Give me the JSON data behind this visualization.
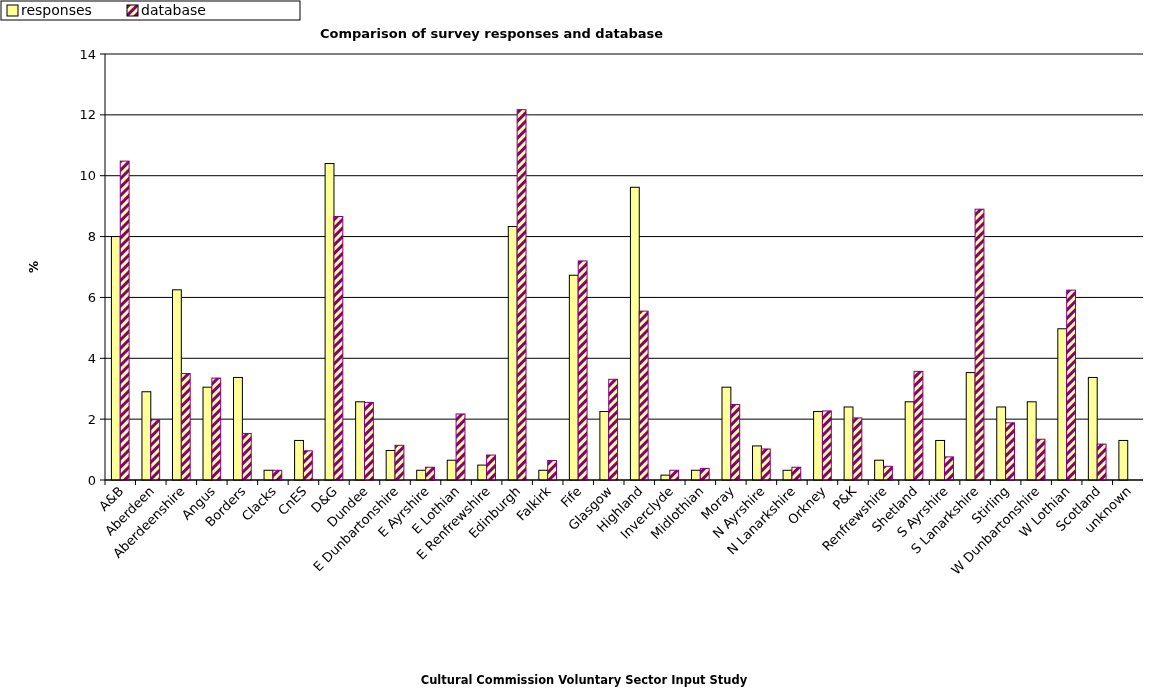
{
  "chart_data": {
    "type": "bar",
    "title": "Comparison of survey responses and database",
    "ylabel": "%",
    "annotations": [
      "Cultural Commission Voluntary Sector Input Study"
    ],
    "categories": [
      "A&B",
      "Aberdeen",
      "Aberdeenshire",
      "Angus",
      "Borders",
      "Clacks",
      "CnES",
      "D&G",
      "Dundee",
      "E Dunbartonshire",
      "E Ayrshire",
      "E Lothian",
      "E Renfrewshire",
      "Edinburgh",
      "Falkirk",
      "Fife",
      "Glasgow",
      "Highland",
      "Inverclyde",
      "Midlothian",
      "Moray",
      "N Ayrshire",
      "N Lanarkshire",
      "Orkney",
      "P&K",
      "Renfrewshire",
      "Shetland",
      "S Ayrshire",
      "S Lanarkshire",
      "Stirling",
      "W Dunbartonshire",
      "W Lothian",
      "Scotland",
      "unknown"
    ],
    "series": [
      {
        "name": "responses",
        "color": "#ffff99",
        "values": [
          8.0,
          2.9,
          6.25,
          3.05,
          3.37,
          0.32,
          1.3,
          10.4,
          2.57,
          0.97,
          0.32,
          0.65,
          0.49,
          8.33,
          0.32,
          6.73,
          2.25,
          9.62,
          0.16,
          0.32,
          3.05,
          1.12,
          0.32,
          2.25,
          2.4,
          0.65,
          2.57,
          1.3,
          3.53,
          2.4,
          2.57,
          4.97,
          3.37,
          1.3
        ]
      },
      {
        "name": "database",
        "color": "#800080",
        "values": [
          10.48,
          1.98,
          3.5,
          3.35,
          1.53,
          0.32,
          0.96,
          8.66,
          2.55,
          1.14,
          0.42,
          2.17,
          0.82,
          12.17,
          0.64,
          7.2,
          3.31,
          5.55,
          0.32,
          0.38,
          2.48,
          1.02,
          0.42,
          2.27,
          2.04,
          0.45,
          3.57,
          0.76,
          8.9,
          1.88,
          1.34,
          6.24,
          1.18,
          null
        ]
      }
    ],
    "ylim": [
      0,
      14
    ],
    "yticks": [
      0,
      2,
      4,
      6,
      8,
      10,
      12,
      14
    ],
    "grid": "y",
    "legend": "top left"
  }
}
